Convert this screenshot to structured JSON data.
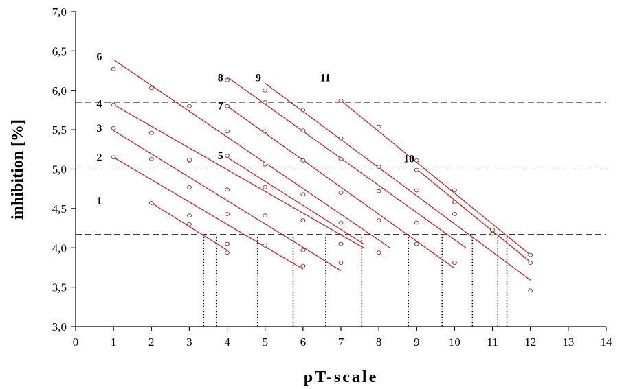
{
  "chart_data": {
    "type": "scatter",
    "title": "",
    "xlabel": "pT-scale",
    "ylabel": "inhibition  [%]",
    "xlim": [
      0,
      14
    ],
    "ylim": [
      3.0,
      7.0
    ],
    "x_ticks": [
      "0",
      "1",
      "2",
      "3",
      "4",
      "5",
      "6",
      "7",
      "8",
      "9",
      "10",
      "11",
      "12",
      "13",
      "14"
    ],
    "y_ticks": [
      "3,0",
      "3,5",
      "4,0",
      "4,5",
      "5,0",
      "5,5",
      "6,0",
      "6,5",
      "7,0"
    ],
    "grid": false,
    "reference_lines_y": [
      5.85,
      5.0,
      4.17
    ],
    "series": [
      {
        "name": "1",
        "label_pos": [
          0.55,
          4.6
        ],
        "points": [
          [
            2,
            4.57
          ],
          [
            3,
            4.3
          ],
          [
            4,
            3.94
          ]
        ],
        "fit": [
          [
            2,
            4.57
          ],
          [
            4,
            3.97
          ]
        ]
      },
      {
        "name": "2",
        "label_pos": [
          0.55,
          5.15
        ],
        "points": [
          [
            1,
            5.15
          ],
          [
            2,
            5.13
          ],
          [
            3,
            4.77
          ],
          [
            4,
            4.43
          ],
          [
            5,
            4.03
          ],
          [
            6,
            3.77
          ]
        ],
        "fit": [
          [
            1,
            5.15
          ],
          [
            6,
            3.73
          ]
        ]
      },
      {
        "name": "3",
        "label_pos": [
          0.55,
          5.52
        ],
        "points": [
          [
            1,
            5.52
          ],
          [
            2,
            5.46
          ],
          [
            3,
            5.11
          ],
          [
            4,
            4.74
          ],
          [
            5,
            4.41
          ],
          [
            6,
            3.97
          ],
          [
            7,
            3.81
          ]
        ],
        "fit": [
          [
            1,
            5.49
          ],
          [
            7,
            3.71
          ]
        ]
      },
      {
        "name": "4",
        "label_pos": [
          0.55,
          5.83
        ],
        "points": [
          [
            1,
            5.82
          ],
          [
            2,
            5.46
          ],
          [
            3,
            5.12
          ],
          [
            4,
            4.74
          ],
          [
            5,
            4.41
          ],
          [
            6,
            4.35
          ],
          [
            7,
            4.05
          ]
        ],
        "fit": [
          [
            1,
            5.82
          ],
          [
            7.6,
            4.0
          ]
        ]
      },
      {
        "name": "5",
        "label_pos": [
          3.75,
          5.17
        ],
        "points": [
          [
            3,
            4.41
          ],
          [
            4,
            4.05
          ],
          [
            4,
            5.17
          ],
          [
            5,
            4.77
          ],
          [
            6,
            4.35
          ],
          [
            7,
            4.05
          ]
        ],
        "fit": [
          [
            4,
            5.15
          ],
          [
            7.6,
            4.05
          ]
        ]
      },
      {
        "name": "6",
        "label_pos": [
          0.55,
          6.43
        ],
        "points": [
          [
            1,
            6.27
          ],
          [
            2,
            6.03
          ],
          [
            3,
            5.8
          ],
          [
            4,
            5.48
          ],
          [
            5,
            5.06
          ],
          [
            6,
            4.68
          ],
          [
            7,
            4.32
          ],
          [
            8,
            3.94
          ]
        ],
        "fit": [
          [
            1,
            6.39
          ],
          [
            8.3,
            4.0
          ]
        ]
      },
      {
        "name": "7",
        "label_pos": [
          3.75,
          5.8
        ],
        "points": [
          [
            4,
            5.8
          ],
          [
            5,
            5.48
          ],
          [
            6,
            5.11
          ],
          [
            7,
            4.7
          ],
          [
            8,
            4.35
          ],
          [
            9,
            4.05
          ]
        ],
        "fit": [
          [
            4,
            5.8
          ],
          [
            10,
            3.74
          ]
        ]
      },
      {
        "name": "8",
        "label_pos": [
          3.75,
          6.16
        ],
        "points": [
          [
            4,
            6.13
          ],
          [
            5,
            5.85
          ],
          [
            6,
            5.49
          ],
          [
            7,
            5.13
          ],
          [
            8,
            4.72
          ],
          [
            9,
            4.32
          ],
          [
            10,
            3.81
          ]
        ],
        "fit": [
          [
            4,
            6.17
          ],
          [
            10.3,
            4.0
          ]
        ]
      },
      {
        "name": "9",
        "label_pos": [
          4.75,
          6.16
        ],
        "points": [
          [
            5,
            6.0
          ],
          [
            6,
            5.75
          ],
          [
            7,
            5.39
          ],
          [
            8,
            5.03
          ],
          [
            9,
            4.73
          ],
          [
            10,
            4.43
          ],
          [
            11,
            4.18
          ],
          [
            12,
            3.46
          ]
        ],
        "fit": [
          [
            5,
            6.09
          ],
          [
            12,
            3.59
          ]
        ]
      },
      {
        "name": "10",
        "label_pos": [
          8.65,
          5.13
        ],
        "points": [
          [
            9,
            4.99
          ],
          [
            10,
            4.58
          ],
          [
            11,
            4.22
          ],
          [
            12,
            3.81
          ]
        ],
        "fit": [
          [
            9,
            5.0
          ],
          [
            12,
            3.82
          ]
        ]
      },
      {
        "name": "11",
        "label_pos": [
          6.45,
          6.16
        ],
        "points": [
          [
            7,
            5.87
          ],
          [
            8,
            5.54
          ],
          [
            9,
            5.11
          ],
          [
            10,
            4.73
          ],
          [
            11,
            4.23
          ],
          [
            12,
            3.91
          ]
        ],
        "fit": [
          [
            7,
            5.87
          ],
          [
            12,
            3.91
          ]
        ]
      }
    ],
    "projection_x": [
      3.38,
      3.72,
      4.8,
      5.74,
      6.6,
      7.55,
      8.78,
      9.67,
      10.47,
      11.14,
      11.38
    ],
    "colors": {
      "fit_line": "#d22020",
      "marker": "#8b4a3a",
      "reference_line": "#000000",
      "axis": "#000000"
    }
  }
}
